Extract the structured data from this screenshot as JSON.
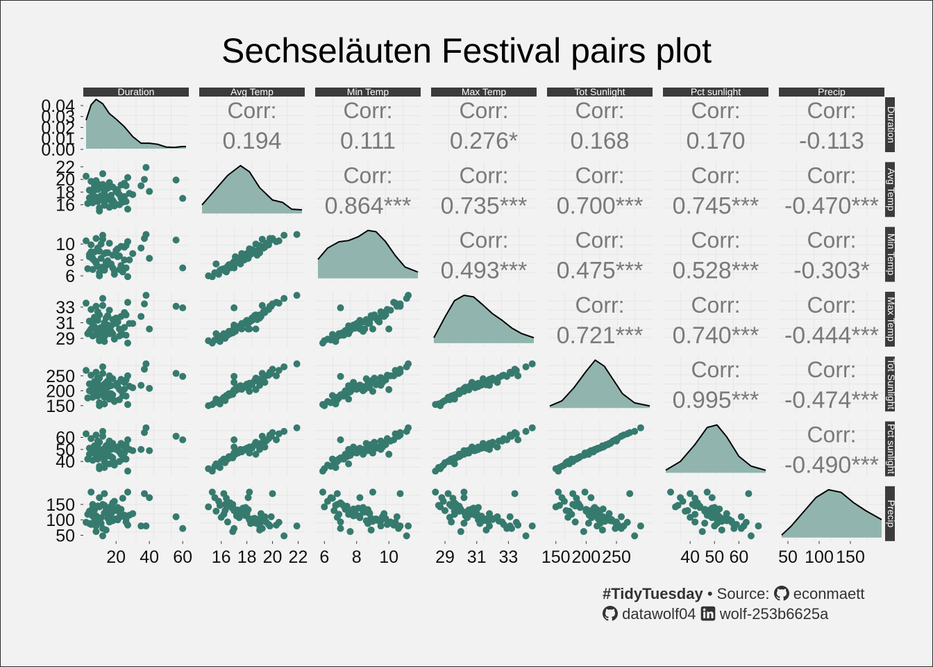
{
  "title": "Sechseläuten Festival pairs plot",
  "caption": {
    "hashtag": "#TidyTuesday",
    "bullet": "•",
    "source_label": "Source:",
    "source_user": "econmaett",
    "author_github": "datawolf04",
    "author_linkedin": "wolf-253b6625a",
    "icons": [
      "github-icon",
      "github-icon",
      "linkedin-icon"
    ]
  },
  "colors": {
    "point": "#367a6e",
    "density_fill": "#91b5ae",
    "density_line": "#000000",
    "strip": "#3b3b3b",
    "corr_text": "#7a7a7a",
    "panel_grid": "#e6e6e6",
    "background": "#f2f2f2"
  },
  "chart_data": {
    "type": "scatter",
    "subtype": "pairs-matrix",
    "variables": [
      "Duration",
      "Avg Temp",
      "Min Temp",
      "Max Temp",
      "Tot Sunlight",
      "Pct sunlight",
      "Precip"
    ],
    "ranges": [
      [
        2,
        62
      ],
      [
        14.5,
        22.3
      ],
      [
        5.6,
        11.8
      ],
      [
        28.3,
        34.6
      ],
      [
        140,
        305
      ],
      [
        30,
        71
      ],
      [
        40,
        200
      ]
    ],
    "x_ticks": [
      [
        20,
        40,
        60
      ],
      [
        16,
        18,
        20,
        22
      ],
      [
        6,
        8,
        10
      ],
      [
        29,
        31,
        33
      ],
      [
        150,
        200,
        250
      ],
      [
        40,
        50,
        60
      ],
      [
        50,
        100,
        150
      ]
    ],
    "y_ticks": [
      [
        0,
        0.01,
        0.02,
        0.03,
        0.04
      ],
      [
        16,
        18,
        20,
        22
      ],
      [
        6,
        8,
        10
      ],
      [
        29,
        31,
        33
      ],
      [
        150,
        200,
        250
      ],
      [
        40,
        50,
        60
      ],
      [
        50,
        100,
        150
      ]
    ],
    "y_tick_labels_first": [
      "0.00",
      "0.01",
      "0.02",
      "0.03",
      "0.04"
    ],
    "corr_label": "Corr:",
    "correlations": [
      [
        "",
        "0.194",
        "0.111",
        "0.276*",
        "0.168",
        "0.170",
        "-0.113"
      ],
      [
        "",
        "",
        "0.864***",
        "0.735***",
        "0.700***",
        "0.745***",
        "-0.470***"
      ],
      [
        "",
        "",
        "",
        "0.493***",
        "0.475***",
        "0.528***",
        "-0.303*"
      ],
      [
        "",
        "",
        "",
        "",
        "0.721***",
        "0.740***",
        "-0.444***"
      ],
      [
        "",
        "",
        "",
        "",
        "",
        "0.995***",
        "-0.474***"
      ],
      [
        "",
        "",
        "",
        "",
        "",
        "",
        "-0.490***"
      ],
      [
        "",
        "",
        "",
        "",
        "",
        "",
        ""
      ]
    ],
    "densities": [
      {
        "x": [
          2,
          5,
          8,
          12,
          16,
          20,
          25,
          30,
          35,
          40,
          45,
          50,
          55,
          60,
          62
        ],
        "y": [
          0.026,
          0.04,
          0.045,
          0.041,
          0.032,
          0.027,
          0.02,
          0.011,
          0.005,
          0.005,
          0.004,
          0.0015,
          0.0012,
          0.002,
          0.002
        ]
      },
      {
        "x": [
          14.5,
          15.5,
          16.5,
          17.5,
          18.2,
          19,
          20,
          20.8,
          21.5,
          22.3
        ],
        "y": [
          0.14,
          0.38,
          0.62,
          0.78,
          0.68,
          0.42,
          0.22,
          0.18,
          0.07,
          0.06
        ]
      },
      {
        "x": [
          5.6,
          6.2,
          6.9,
          7.5,
          8.1,
          8.7,
          9.2,
          9.8,
          10.4,
          11,
          11.8
        ],
        "y": [
          0.3,
          0.48,
          0.58,
          0.6,
          0.66,
          0.76,
          0.74,
          0.58,
          0.36,
          0.18,
          0.1
        ]
      },
      {
        "x": [
          28.3,
          29,
          29.6,
          30.2,
          30.8,
          31.4,
          32,
          32.6,
          33.2,
          33.8,
          34.6
        ],
        "y": [
          0.1,
          0.48,
          0.78,
          0.88,
          0.85,
          0.7,
          0.54,
          0.42,
          0.28,
          0.18,
          0.1
        ]
      },
      {
        "x": [
          140,
          160,
          180,
          200,
          215,
          230,
          245,
          260,
          280,
          305
        ],
        "y": [
          0.04,
          0.14,
          0.4,
          0.72,
          0.94,
          0.82,
          0.55,
          0.28,
          0.1,
          0.04
        ]
      },
      {
        "x": [
          30,
          36,
          42,
          47,
          51,
          55,
          60,
          65,
          71
        ],
        "y": [
          0.05,
          0.22,
          0.55,
          0.88,
          0.93,
          0.7,
          0.32,
          0.13,
          0.05
        ]
      },
      {
        "x": [
          40,
          55,
          75,
          95,
          115,
          135,
          155,
          175,
          200
        ],
        "y": [
          0.05,
          0.22,
          0.5,
          0.78,
          0.93,
          0.88,
          0.68,
          0.52,
          0.35
        ]
      }
    ],
    "observations": [
      [
        5,
        18.2,
        9.0,
        30.2,
        198,
        47,
        190
      ],
      [
        8,
        19.8,
        10.7,
        33.1,
        262,
        62,
        80
      ],
      [
        12,
        20.9,
        11.1,
        34.1,
        280,
        65,
        48
      ],
      [
        15,
        17.0,
        7.8,
        30.7,
        228,
        52,
        135
      ],
      [
        6,
        16.3,
        6.8,
        29.3,
        178,
        41,
        150
      ],
      [
        10,
        15.5,
        6.4,
        28.8,
        160,
        36,
        172
      ],
      [
        18,
        18.8,
        8.6,
        31.4,
        240,
        55,
        97
      ],
      [
        25,
        19.4,
        9.6,
        32.3,
        228,
        52,
        110
      ],
      [
        22,
        17.6,
        8.5,
        30.2,
        205,
        48,
        125
      ],
      [
        14,
        16.8,
        7.3,
        29.8,
        190,
        44,
        140
      ],
      [
        3,
        16.2,
        6.9,
        29.6,
        176,
        42,
        118
      ],
      [
        20,
        18.4,
        9.2,
        31.6,
        220,
        51,
        103
      ],
      [
        7,
        17.3,
        7.9,
        30.5,
        210,
        48,
        132
      ],
      [
        28,
        17.8,
        8.0,
        30.9,
        215,
        50,
        115
      ],
      [
        11,
        18.7,
        10.0,
        30.2,
        204,
        46,
        89
      ],
      [
        16,
        19.5,
        10.1,
        32.6,
        250,
        57,
        93
      ],
      [
        9,
        16.5,
        7.2,
        29.4,
        182,
        42,
        145
      ],
      [
        13,
        18.0,
        8.8,
        31.0,
        222,
        51,
        122
      ],
      [
        19,
        15.8,
        6.2,
        28.9,
        164,
        37,
        160
      ],
      [
        4,
        17.1,
        8.4,
        29.9,
        200,
        46,
        128
      ],
      [
        26,
        19.0,
        9.8,
        32.0,
        236,
        54,
        104
      ],
      [
        17,
        17.5,
        7.5,
        30.6,
        217,
        50,
        118
      ],
      [
        21,
        18.2,
        9.4,
        31.1,
        225,
        52,
        100
      ],
      [
        12,
        16.9,
        7.1,
        29.7,
        188,
        43,
        150
      ],
      [
        6,
        17.7,
        8.1,
        30.8,
        213,
        49,
        138
      ],
      [
        24,
        16.4,
        6.5,
        29.5,
        184,
        42,
        170
      ],
      [
        10,
        15.0,
        6.0,
        28.7,
        150,
        34,
        142
      ],
      [
        15,
        18.6,
        8.9,
        31.9,
        233,
        54,
        105
      ],
      [
        8,
        17.2,
        7.8,
        30.3,
        207,
        48,
        113
      ],
      [
        18,
        16.7,
        7.0,
        29.6,
        186,
        43,
        155
      ],
      [
        2,
        20.5,
        10.4,
        33.5,
        268,
        63,
        92
      ],
      [
        23,
        19.1,
        9.7,
        31.8,
        238,
        55,
        120
      ],
      [
        14,
        17.0,
        7.7,
        30.5,
        203,
        47,
        130
      ],
      [
        9,
        18.4,
        9.3,
        31.3,
        226,
        52,
        98
      ],
      [
        27,
        15.3,
        5.9,
        28.4,
        154,
        32,
        190
      ],
      [
        5,
        19.7,
        9.9,
        32.7,
        252,
        59,
        85
      ],
      [
        13,
        16.2,
        6.8,
        29.2,
        178,
        40,
        185
      ],
      [
        20,
        18.1,
        8.7,
        30.9,
        218,
        50,
        133
      ],
      [
        11,
        17.4,
        8.2,
        30.4,
        209,
        49,
        107
      ],
      [
        16,
        15.6,
        7.5,
        29.6,
        172,
        38,
        128
      ],
      [
        7,
        18.9,
        9.0,
        31.7,
        231,
        53,
        95
      ],
      [
        22,
        16.0,
        6.8,
        29.3,
        170,
        40,
        108
      ],
      [
        12,
        19.2,
        10.6,
        33.2,
        258,
        61,
        72
      ],
      [
        17,
        16.6,
        7.4,
        29.9,
        190,
        44,
        144
      ],
      [
        4,
        18.3,
        8.7,
        31.2,
        223,
        51,
        88
      ],
      [
        25,
        17.3,
        8.0,
        30.4,
        205,
        47,
        115
      ],
      [
        14,
        19.0,
        8.9,
        31.6,
        227,
        53,
        67
      ],
      [
        19,
        16.3,
        6.6,
        29.0,
        167,
        39,
        130
      ],
      [
        30,
        17.6,
        8.8,
        30.9,
        210,
        49,
        120
      ],
      [
        10,
        18.7,
        9.1,
        32.0,
        242,
        56,
        101
      ],
      [
        27,
        20.3,
        10.3,
        33.6,
        250,
        58,
        83
      ],
      [
        8,
        16.9,
        7.6,
        30.0,
        196,
        45,
        62
      ],
      [
        21,
        17.9,
        8.4,
        31.1,
        214,
        50,
        140
      ],
      [
        13,
        15.9,
        6.7,
        28.6,
        156,
        35,
        147
      ],
      [
        6,
        18.0,
        8.2,
        31.3,
        219,
        51,
        112
      ],
      [
        15,
        17.2,
        7.9,
        30.3,
        212,
        48,
        124
      ],
      [
        26,
        16.5,
        7.0,
        29.4,
        182,
        42,
        93
      ],
      [
        9,
        19.3,
        9.5,
        32.4,
        244,
        57,
        96
      ],
      [
        23,
        17.0,
        7.3,
        30.0,
        200,
        46,
        134
      ],
      [
        37,
        20.0,
        10.7,
        33.4,
        272,
        64,
        185
      ],
      [
        40,
        18.1,
        8.2,
        30.2,
        208,
        49,
        172
      ],
      [
        35,
        19.0,
        9.5,
        31.8,
        218,
        50,
        80
      ],
      [
        56,
        19.9,
        10.5,
        33.1,
        258,
        61,
        110
      ],
      [
        60,
        17.0,
        7.0,
        32.9,
        248,
        58,
        72
      ],
      [
        38,
        21.9,
        11.2,
        34.5,
        290,
        68,
        80
      ]
    ]
  }
}
